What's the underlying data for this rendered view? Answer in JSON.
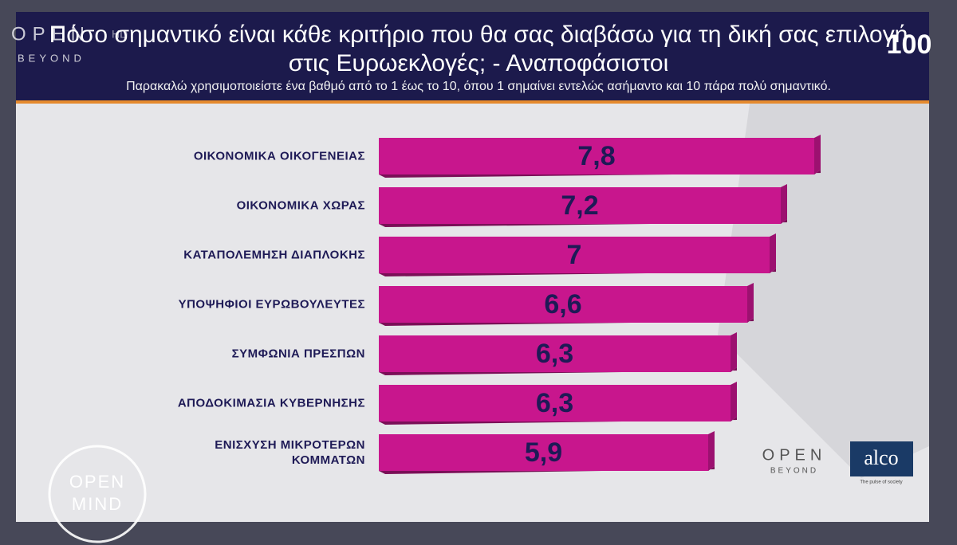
{
  "header": {
    "title": "Πόσο σημαντικό είναι κάθε κριτήριο που θα σας διαβάσω για τη δική σας επιλογή στις Ευρωεκλογές; - Αναποφάσιστοι",
    "subtitle": "Παρακαλώ χρησιμοποιείστε ένα βαθμό από το 1 έως το 10, όπου 1 σημαίνει εντελώς ασήμαντο και 10 πάρα πολύ σημαντικό."
  },
  "chart_data": {
    "type": "bar",
    "orientation": "horizontal",
    "categories": [
      "ΟΙΚΟΝΟΜΙΚΑ ΟΙΚΟΓΕΝΕΙΑΣ",
      "ΟΙΚΟΝΟΜΙΚΑ ΧΩΡΑΣ",
      "ΚΑΤΑΠΟΛΕΜΗΣΗ ΔΙΑΠΛΟΚΗΣ",
      "ΥΠΟΨΗΦΙΟΙ ΕΥΡΩΒΟΥΛΕΥΤΕΣ",
      "ΣΥΜΦΩΝΙΑ ΠΡΕΣΠΩΝ",
      "ΑΠΟΔΟΚΙΜΑΣΙΑ ΚΥΒΕΡΝΗΣΗΣ",
      "ΕΝΙΣΧΥΣΗ ΜΙΚΡΟΤΕΡΩΝ ΚΟΜΜΑΤΩΝ"
    ],
    "values": [
      7.8,
      7.2,
      7,
      6.6,
      6.3,
      6.3,
      5.9
    ],
    "value_labels": [
      "7,8",
      "7,2",
      "7",
      "6,6",
      "6,3",
      "6,3",
      "5,9"
    ],
    "color": "#c8168d"
  },
  "logos": {
    "channel": "OPEN",
    "channel_hd": "HD",
    "channel_sub": "BEYOND",
    "badge": "100",
    "sponsor": "OPEN",
    "sponsor_sub": "BEYOND",
    "pollster": "alco",
    "pollster_tagline": "The pulse of society",
    "show": "OPEN",
    "show_2": "MIND"
  }
}
